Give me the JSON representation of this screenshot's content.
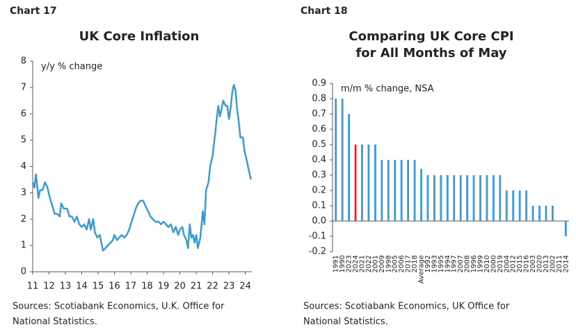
{
  "chart_data": [
    {
      "type": "line",
      "label": "Chart 17",
      "title": [
        "UK Core Inflation"
      ],
      "annotation": "y/y % change",
      "note": [
        "Sources: Scotiabank Economics, U.K. Office for",
        "National Statistics."
      ],
      "color": "#3c9ad3",
      "x": [
        2011.0,
        2011.1,
        2011.2,
        2011.35,
        2011.45,
        2011.6,
        2011.75,
        2011.9,
        2012.05,
        2012.2,
        2012.35,
        2012.5,
        2012.65,
        2012.75,
        2012.9,
        2013.1,
        2013.25,
        2013.4,
        2013.55,
        2013.7,
        2013.85,
        2014.0,
        2014.15,
        2014.3,
        2014.45,
        2014.55,
        2014.7,
        2014.8,
        2014.95,
        2015.1,
        2015.2,
        2015.3,
        2015.45,
        2015.6,
        2015.75,
        2015.9,
        2016.0,
        2016.15,
        2016.3,
        2016.45,
        2016.6,
        2016.75,
        2016.9,
        2017.0,
        2017.15,
        2017.3,
        2017.45,
        2017.6,
        2017.75,
        2017.9,
        2018.05,
        2018.2,
        2018.35,
        2018.5,
        2018.7,
        2018.85,
        2019.0,
        2019.15,
        2019.3,
        2019.45,
        2019.6,
        2019.75,
        2019.9,
        2020.0,
        2020.15,
        2020.25,
        2020.4,
        2020.5,
        2020.6,
        2020.7,
        2020.8,
        2020.9,
        2021.0,
        2021.1,
        2021.25,
        2021.4,
        2021.5,
        2021.6,
        2021.75,
        2021.85,
        2022.0,
        2022.15,
        2022.25,
        2022.35,
        2022.45,
        2022.55,
        2022.65,
        2022.8,
        2022.9,
        2023.0,
        2023.1,
        2023.2,
        2023.3,
        2023.4,
        2023.5,
        2023.6,
        2023.7,
        2023.85,
        2023.95,
        2024.1,
        2024.2,
        2024.35
      ],
      "values": [
        3.4,
        3.2,
        3.7,
        2.8,
        3.1,
        3.1,
        3.4,
        3.2,
        2.8,
        2.5,
        2.2,
        2.2,
        2.1,
        2.6,
        2.4,
        2.4,
        2.1,
        2.1,
        1.9,
        2.1,
        1.8,
        1.7,
        1.8,
        1.6,
        2.0,
        1.6,
        2.0,
        1.5,
        1.3,
        1.4,
        1.1,
        0.8,
        0.9,
        1.0,
        1.1,
        1.2,
        1.4,
        1.2,
        1.3,
        1.4,
        1.3,
        1.4,
        1.6,
        1.8,
        2.1,
        2.4,
        2.6,
        2.7,
        2.7,
        2.5,
        2.3,
        2.1,
        2.0,
        1.9,
        1.9,
        1.8,
        1.9,
        1.8,
        1.7,
        1.8,
        1.5,
        1.7,
        1.4,
        1.6,
        1.7,
        1.4,
        1.2,
        0.9,
        1.8,
        1.3,
        1.4,
        1.1,
        1.4,
        0.9,
        1.3,
        2.3,
        1.8,
        3.1,
        3.4,
        4.0,
        4.4,
        5.2,
        5.8,
        6.3,
        5.9,
        6.2,
        6.5,
        6.3,
        6.3,
        5.8,
        6.2,
        6.8,
        7.1,
        6.9,
        6.2,
        5.7,
        5.1,
        5.1,
        4.6,
        4.2,
        3.9,
        3.5
      ],
      "xlim": [
        2011,
        2024.4
      ],
      "xticks": [
        {
          "value": 2011,
          "label": "11"
        },
        {
          "value": 2012,
          "label": "12"
        },
        {
          "value": 2013,
          "label": "13"
        },
        {
          "value": 2014,
          "label": "14"
        },
        {
          "value": 2015,
          "label": "15"
        },
        {
          "value": 2016,
          "label": "16"
        },
        {
          "value": 2017,
          "label": "17"
        },
        {
          "value": 2018,
          "label": "18"
        },
        {
          "value": 2019,
          "label": "19"
        },
        {
          "value": 2020,
          "label": "20"
        },
        {
          "value": 2021,
          "label": "21"
        },
        {
          "value": 2022,
          "label": "22"
        },
        {
          "value": 2023,
          "label": "23"
        },
        {
          "value": 2024,
          "label": "24"
        }
      ],
      "ylim": [
        0,
        8
      ],
      "yticks": [
        0,
        1,
        2,
        3,
        4,
        5,
        6,
        7,
        8
      ]
    },
    {
      "type": "bar",
      "label": "Chart 18",
      "title": [
        "Comparing UK Core CPI",
        "for All Months of May"
      ],
      "annotation": "m/m % change, NSA",
      "note": [
        "Sources: Scotiabank Economics, UK Office for",
        "National Statistics."
      ],
      "categories": [
        "1991",
        "1990",
        "2023",
        "2024",
        "2021",
        "2022",
        "2001",
        "2009",
        "1998",
        "2005",
        "2006",
        "2017",
        "2018",
        "Average",
        "1992",
        "1993",
        "1995",
        "1994",
        "1997",
        "2007",
        "2008",
        "1996",
        "1999",
        "2010",
        "2000",
        "2019",
        "2004",
        "2012",
        "2015",
        "2016",
        "2003",
        "2020",
        "2013",
        "2002",
        "2011",
        "2014"
      ],
      "values": [
        0.8,
        0.8,
        0.7,
        0.5,
        0.5,
        0.5,
        0.5,
        0.4,
        0.4,
        0.4,
        0.4,
        0.4,
        0.4,
        0.34,
        0.3,
        0.3,
        0.3,
        0.3,
        0.3,
        0.3,
        0.3,
        0.3,
        0.3,
        0.3,
        0.3,
        0.3,
        0.2,
        0.2,
        0.2,
        0.2,
        0.1,
        0.1,
        0.1,
        0.1,
        0,
        -0.1
      ],
      "colors": [
        "#3c9ad3",
        "#3c9ad3",
        "#3c9ad3",
        "#e3222b",
        "#3c9ad3",
        "#3c9ad3",
        "#3c9ad3",
        "#3c9ad3",
        "#3c9ad3",
        "#3c9ad3",
        "#3c9ad3",
        "#3c9ad3",
        "#3c9ad3",
        "#3c9ad3",
        "#3c9ad3",
        "#3c9ad3",
        "#3c9ad3",
        "#3c9ad3",
        "#3c9ad3",
        "#3c9ad3",
        "#3c9ad3",
        "#3c9ad3",
        "#3c9ad3",
        "#3c9ad3",
        "#3c9ad3",
        "#3c9ad3",
        "#3c9ad3",
        "#3c9ad3",
        "#3c9ad3",
        "#3c9ad3",
        "#3c9ad3",
        "#3c9ad3",
        "#3c9ad3",
        "#3c9ad3",
        "#3c9ad3",
        "#3c9ad3"
      ],
      "ylim": [
        -0.2,
        0.9
      ],
      "yticks": [
        -0.2,
        -0.1,
        {
          "value": 0,
          "label": "0.0"
        },
        0.1,
        0.2,
        0.3,
        0.4,
        0.5,
        0.6,
        0.7,
        0.8,
        0.9
      ]
    }
  ]
}
